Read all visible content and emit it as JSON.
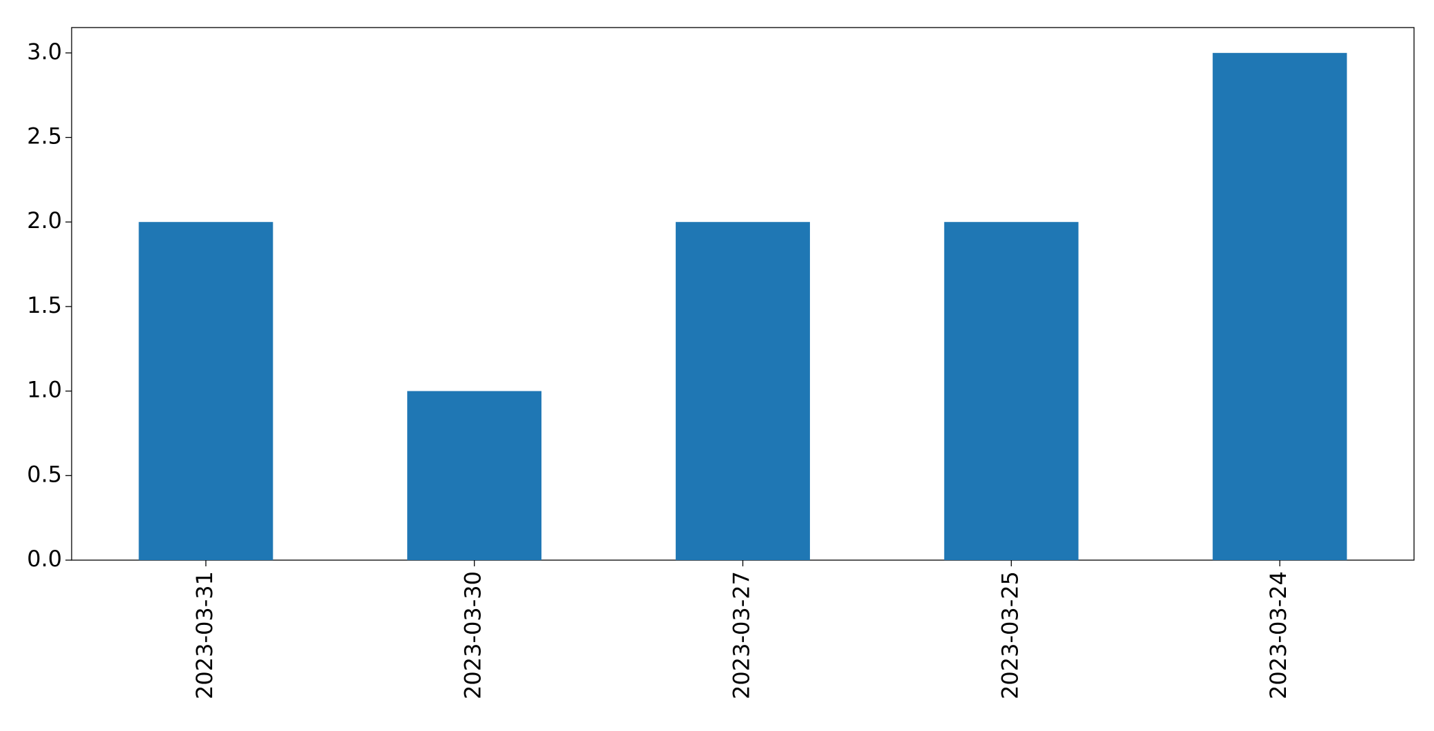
{
  "chart_data": {
    "type": "bar",
    "categories": [
      "2023-03-31",
      "2023-03-30",
      "2023-03-27",
      "2023-03-25",
      "2023-03-24"
    ],
    "values": [
      2,
      1,
      2,
      2,
      3
    ],
    "color": "#1f77b4",
    "ylim": [
      0,
      3.15
    ],
    "yticks": [
      {
        "value": 0,
        "label": "0.0"
      },
      0.5,
      {
        "value": 1,
        "label": "1.0"
      },
      1.5,
      {
        "value": 2,
        "label": "2.0"
      },
      2.5,
      {
        "value": 3,
        "label": "3.0"
      }
    ],
    "grid": false
  }
}
